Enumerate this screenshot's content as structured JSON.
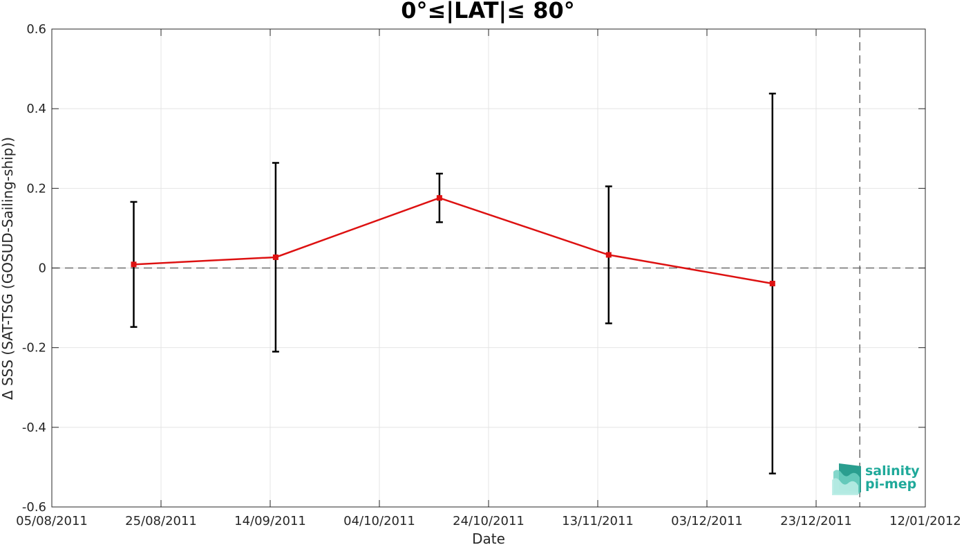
{
  "chart_data": {
    "type": "line",
    "title": "0°≤|LAT|≤ 80°",
    "xlabel": "Date",
    "ylabel": "Δ SSS (SAT-TSG (GOSUD-Sailing-ship))",
    "xlim": [
      "2011-08-05",
      "2012-01-12"
    ],
    "ylim": [
      -0.6,
      0.6
    ],
    "x_ticks": [
      "05/08/2011",
      "25/08/2011",
      "14/09/2011",
      "04/10/2011",
      "24/10/2011",
      "13/11/2011",
      "03/12/2011",
      "23/12/2011",
      "12/01/2012"
    ],
    "y_ticks": [
      -0.6,
      -0.4,
      -0.2,
      0,
      0.2,
      0.4,
      0.6
    ],
    "y_tick_labels": [
      "-0.6",
      "-0.4",
      "-0.2",
      "0",
      "0.2",
      "0.4",
      "0.6"
    ],
    "grid": true,
    "series": [
      {
        "color": "#dd1111",
        "x": [
          "2011-08-20",
          "2011-09-15",
          "2011-10-15",
          "2011-11-15",
          "2011-12-15"
        ],
        "y": [
          0.009,
          0.027,
          0.176,
          0.033,
          -0.039
        ],
        "error": [
          0.157,
          0.237,
          0.061,
          0.172,
          0.477
        ],
        "error_color": "#000000"
      }
    ],
    "reference_lines": [
      {
        "axis": "y",
        "value": 0,
        "style": "dashed"
      },
      {
        "axis": "x",
        "value": "2011-12-31",
        "style": "dashed"
      }
    ]
  },
  "logo": {
    "line1": "salinity",
    "line2": "pi-mep",
    "color": "#1fa99a"
  }
}
